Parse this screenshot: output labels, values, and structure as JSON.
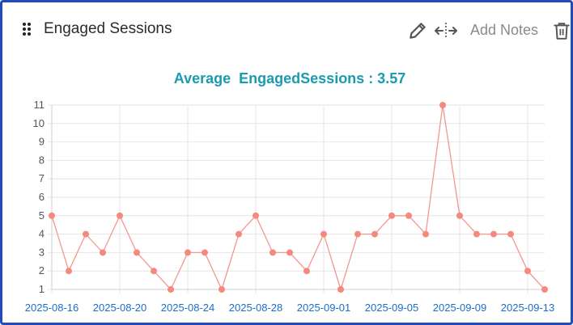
{
  "widget": {
    "title": "Engaged Sessions",
    "add_notes_label": "Add Notes",
    "icons": {
      "drag": "drag-handle-icon",
      "edit": "pencil-icon",
      "move": "move-arrows-icon",
      "delete": "trash-icon"
    }
  },
  "chart_data": {
    "type": "line",
    "title": "Average  EngagedSessions : 3.57",
    "x": [
      "2025-08-16",
      "2025-08-17",
      "2025-08-18",
      "2025-08-19",
      "2025-08-20",
      "2025-08-21",
      "2025-08-22",
      "2025-08-23",
      "2025-08-24",
      "2025-08-25",
      "2025-08-26",
      "2025-08-27",
      "2025-08-28",
      "2025-08-29",
      "2025-08-30",
      "2025-08-31",
      "2025-09-01",
      "2025-09-02",
      "2025-09-03",
      "2025-09-04",
      "2025-09-05",
      "2025-09-06",
      "2025-09-07",
      "2025-09-08",
      "2025-09-09",
      "2025-09-10",
      "2025-09-11",
      "2025-09-12",
      "2025-09-13",
      "2025-09-14"
    ],
    "x_tick_labels": [
      "2025-08-16",
      "2025-08-20",
      "2025-08-24",
      "2025-08-28",
      "2025-09-01",
      "2025-09-05",
      "2025-09-09",
      "2025-09-13"
    ],
    "series": [
      {
        "values": [
          5,
          2,
          4,
          3,
          5,
          3,
          2,
          1,
          3,
          3,
          1,
          4,
          5,
          3,
          3,
          2,
          4,
          1,
          4,
          4,
          5,
          5,
          4,
          11,
          5,
          4,
          4,
          4,
          2,
          1
        ]
      }
    ],
    "y_ticks": [
      1,
      2,
      3,
      4,
      5,
      6,
      7,
      8,
      9,
      10,
      11
    ],
    "ylim": [
      1,
      11
    ],
    "grid": true,
    "colors": {
      "line": "#f4978e",
      "point": "#f4897e",
      "title": "#1a9bb0",
      "x_tick": "#1a6fc9",
      "grid": "#e6e6e6"
    }
  }
}
